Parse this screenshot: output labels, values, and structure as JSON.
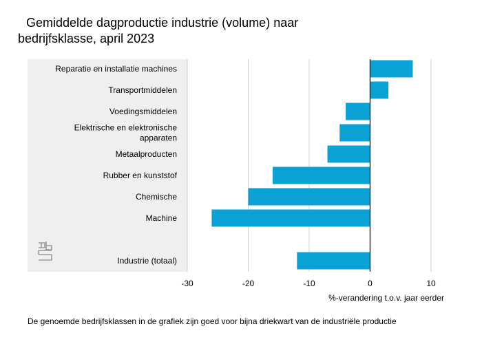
{
  "title_line1": "Gemiddelde dagproductie industrie (volume) naar",
  "title_line2": "bedrijfsklasse, april 2023",
  "footnote": "De genoemde bedrijfsklassen in de grafiek zijn goed voor bijna driekwart van de industriële productie",
  "colors": {
    "bar": "#0aa1d4",
    "label_panel": "#efefef",
    "grid": "#cfcfcf",
    "zero_line": "#333333"
  },
  "chart_data": {
    "type": "bar",
    "orientation": "horizontal",
    "categories": [
      [
        "Reparatie en installatie machines"
      ],
      [
        "Transportmiddelen"
      ],
      [
        "Voedingsmiddelen"
      ],
      [
        "Elektrische en elektronische",
        "apparaten"
      ],
      [
        "Metaalproducten"
      ],
      [
        "Rubber en kunststof"
      ],
      [
        "Chemische"
      ],
      [
        "Machine"
      ],
      [
        "Industrie (totaal)"
      ]
    ],
    "values": [
      7,
      3,
      -4,
      -5,
      -7,
      -16,
      -20,
      -26,
      -12
    ],
    "xlabel": "%-verandering t.o.v. jaar eerder",
    "xlim": [
      -30,
      10
    ],
    "xticks": [
      -30,
      -20,
      -10,
      0,
      10
    ],
    "grid": true,
    "logo_icon": "cbs-logo-icon"
  }
}
